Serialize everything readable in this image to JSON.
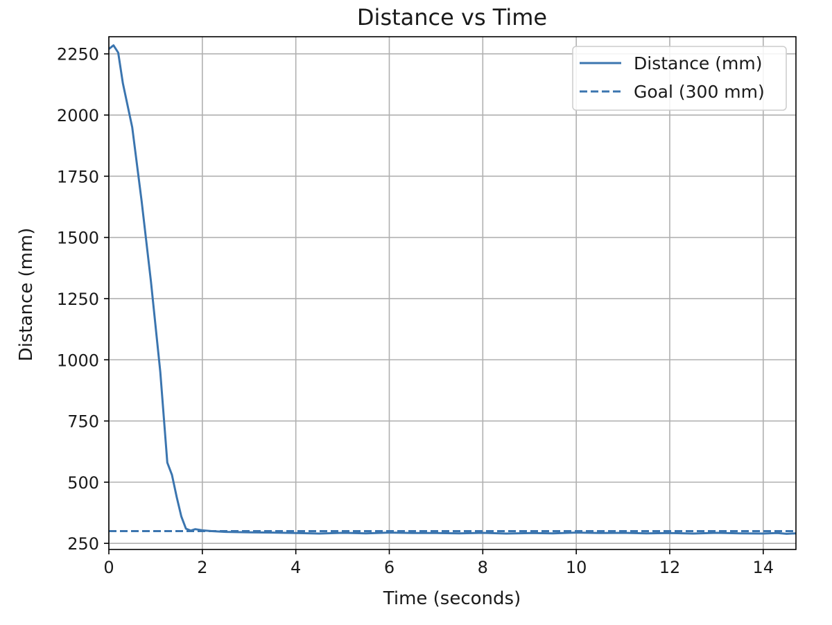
{
  "chart_data": {
    "type": "line",
    "title": "Distance vs Time",
    "xlabel": "Time (seconds)",
    "ylabel": "Distance (mm)",
    "xlim": [
      0,
      14.7
    ],
    "ylim": [
      225,
      2320
    ],
    "x_ticks": [
      0,
      2,
      4,
      6,
      8,
      10,
      12,
      14
    ],
    "y_ticks": [
      250,
      500,
      750,
      1000,
      1250,
      1500,
      1750,
      2000,
      2250
    ],
    "grid": true,
    "legend_position": "top-right",
    "colors": {
      "line": "#3b75af",
      "grid": "#b0b0b0",
      "axes": "#000000"
    },
    "series": [
      {
        "name": "Distance (mm)",
        "style": "solid",
        "x": [
          0,
          0.1,
          0.2,
          0.3,
          0.5,
          0.7,
          0.9,
          1.1,
          1.25,
          1.35,
          1.45,
          1.55,
          1.65,
          1.75,
          1.85,
          2.0,
          2.2,
          2.5,
          3.0,
          3.5,
          4.0,
          4.5,
          5.0,
          5.5,
          6.0,
          6.5,
          7.0,
          7.5,
          8.0,
          8.5,
          9.0,
          9.5,
          10.0,
          10.5,
          11.0,
          11.5,
          12.0,
          12.5,
          13.0,
          13.5,
          14.0,
          14.3,
          14.5,
          14.7
        ],
        "y": [
          2270,
          2285,
          2255,
          2130,
          1950,
          1650,
          1320,
          950,
          580,
          530,
          440,
          360,
          310,
          302,
          308,
          303,
          300,
          297,
          295,
          294,
          292,
          290,
          293,
          291,
          294,
          292,
          292,
          291,
          293,
          290,
          292,
          291,
          294,
          292,
          293,
          291,
          292,
          290,
          293,
          291,
          290,
          292,
          289,
          291
        ]
      },
      {
        "name": "Goal (300 mm)",
        "style": "dashed",
        "x": [
          0,
          14.7
        ],
        "y": [
          300,
          300
        ]
      }
    ]
  }
}
